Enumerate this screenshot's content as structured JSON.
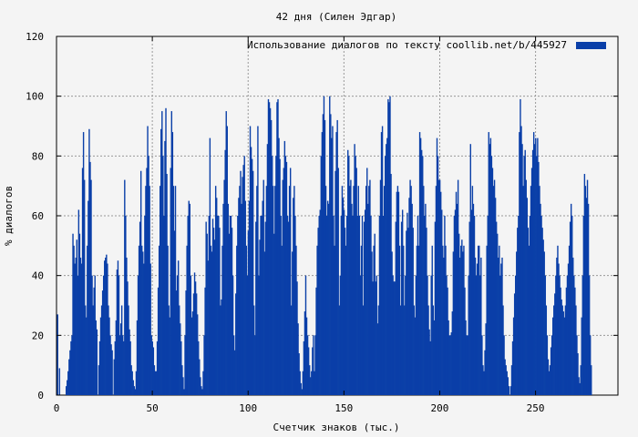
{
  "chart_data": {
    "type": "bar",
    "title": "42 дня (Силен Эдгар)",
    "xlabel": "Счетчик знаков (тыс.)",
    "ylabel": "% диалогов",
    "xlim": [
      0,
      293
    ],
    "ylim": [
      0,
      120
    ],
    "xticks": [
      0,
      50,
      100,
      150,
      200,
      250
    ],
    "yticks": [
      0,
      20,
      40,
      60,
      80,
      100,
      120
    ],
    "grid": true,
    "legend_position": "top-right",
    "series": [
      {
        "name": "Использование диалогов по тексту  coollib.net/b/445927",
        "color": "#0a3fa8",
        "x_step": 0.5,
        "x_start": 0.5,
        "values": [
          27,
          0,
          9,
          0,
          0,
          0,
          0,
          0,
          0,
          3,
          5,
          8,
          12,
          15,
          18,
          20,
          54,
          50,
          44,
          46,
          52,
          40,
          62,
          54,
          46,
          44,
          76,
          88,
          72,
          30,
          26,
          50,
          65,
          89,
          78,
          72,
          40,
          30,
          36,
          40,
          25,
          22,
          0,
          10,
          18,
          26,
          30,
          35,
          40,
          45,
          46,
          47,
          44,
          30,
          26,
          20,
          17,
          15,
          0,
          12,
          18,
          25,
          42,
          45,
          40,
          20,
          24,
          30,
          20,
          18,
          72,
          60,
          46,
          38,
          30,
          22,
          18,
          10,
          8,
          5,
          3,
          2,
          8,
          25,
          40,
          50,
          58,
          75,
          50,
          48,
          44,
          60,
          70,
          76,
          90,
          80,
          70,
          44,
          20,
          18,
          16,
          10,
          8,
          8,
          18,
          36,
          50,
          70,
          89,
          95,
          80,
          60,
          85,
          96,
          74,
          50,
          30,
          26,
          76,
          95,
          88,
          70,
          55,
          70,
          35,
          40,
          45,
          30,
          24,
          18,
          10,
          6,
          2,
          20,
          35,
          50,
          60,
          65,
          64,
          40,
          26,
          28,
          34,
          41,
          38,
          34,
          27,
          18,
          12,
          6,
          3,
          2,
          8,
          20,
          36,
          58,
          54,
          45,
          60,
          86,
          50,
          48,
          59,
          56,
          52,
          70,
          66,
          60,
          60,
          56,
          30,
          32,
          50,
          64,
          72,
          82,
          95,
          90,
          64,
          54,
          60,
          60,
          56,
          40,
          20,
          15,
          34,
          50,
          60,
          66,
          70,
          75,
          64,
          73,
          77,
          80,
          65,
          50,
          40,
          55,
          65,
          90,
          83,
          79,
          75,
          30,
          20,
          58,
          70,
          90,
          40,
          52,
          60,
          60,
          65,
          72,
          48,
          58,
          70,
          84,
          99,
          98,
          96,
          92,
          80,
          70,
          54,
          70,
          80,
          98,
          99,
          86,
          79,
          60,
          50,
          72,
          76,
          85,
          80,
          78,
          60,
          58,
          70,
          76,
          30,
          48,
          66,
          70,
          60,
          50,
          38,
          24,
          14,
          8,
          4,
          2,
          8,
          18,
          28,
          40,
          26,
          20,
          16,
          10,
          6,
          8,
          16,
          20,
          8,
          20,
          36,
          50,
          56,
          60,
          62,
          80,
          88,
          94,
          100,
          92,
          70,
          60,
          65,
          64,
          100,
          94,
          86,
          90,
          60,
          50,
          75,
          88,
          92,
          76,
          30,
          40,
          60,
          70,
          66,
          62,
          56,
          50,
          60,
          82,
          80,
          70,
          72,
          64,
          60,
          70,
          84,
          80,
          76,
          60,
          70,
          60,
          40,
          50,
          60,
          30,
          58,
          62,
          70,
          76,
          64,
          70,
          72,
          60,
          48,
          38,
          50,
          54,
          38,
          40,
          24,
          30,
          60,
          72,
          88,
          90,
          60,
          70,
          80,
          84,
          86,
          99,
          98,
          100,
          74,
          48,
          40,
          38,
          38,
          58,
          68,
          70,
          68,
          50,
          30,
          58,
          62,
          50,
          30,
          40,
          55,
          61,
          56,
          66,
          72,
          70,
          64,
          56,
          30,
          26,
          40,
          50,
          60,
          50,
          88,
          86,
          82,
          80,
          70,
          60,
          64,
          56,
          40,
          30,
          22,
          18,
          40,
          50,
          30,
          25,
          58,
          70,
          86,
          80,
          72,
          72,
          68,
          62,
          50,
          46,
          60,
          50,
          40,
          36,
          25,
          20,
          20,
          21,
          28,
          48,
          60,
          62,
          68,
          64,
          72,
          54,
          46,
          50,
          52,
          48,
          50,
          36,
          25,
          20,
          20,
          40,
          58,
          84,
          62,
          70,
          64,
          60,
          46,
          40,
          44,
          50,
          50,
          40,
          46,
          20,
          10,
          8,
          15,
          24,
          50,
          60,
          88,
          84,
          86,
          80,
          76,
          70,
          72,
          66,
          58,
          54,
          46,
          50,
          40,
          44,
          46,
          30,
          20,
          12,
          10,
          8,
          6,
          3,
          0,
          3,
          10,
          18,
          26,
          34,
          40,
          48,
          56,
          60,
          88,
          99,
          90,
          84,
          70,
          80,
          82,
          72,
          66,
          56,
          50,
          60,
          70,
          76,
          82,
          88,
          84,
          86,
          80,
          86,
          78,
          70,
          64,
          60,
          56,
          52,
          48,
          40,
          30,
          20,
          12,
          8,
          10,
          16,
          20,
          26,
          30,
          34,
          40,
          46,
          50,
          44,
          40,
          36,
          32,
          30,
          28,
          26,
          30,
          36,
          40,
          44,
          50,
          58,
          64,
          60,
          46,
          40,
          36,
          30,
          20,
          14,
          6,
          4,
          10,
          26,
          40,
          60,
          74,
          70,
          66,
          72,
          64,
          40,
          20,
          10
        ]
      }
    ]
  }
}
